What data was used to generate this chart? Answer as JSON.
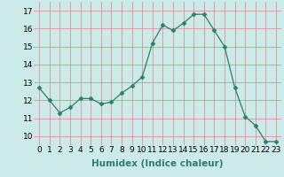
{
  "x": [
    0,
    1,
    2,
    3,
    4,
    5,
    6,
    7,
    8,
    9,
    10,
    11,
    12,
    13,
    14,
    15,
    16,
    17,
    18,
    19,
    20,
    21,
    22,
    23
  ],
  "y": [
    12.7,
    12.0,
    11.3,
    11.6,
    12.1,
    12.1,
    11.8,
    11.9,
    12.4,
    12.8,
    13.3,
    15.2,
    16.2,
    15.9,
    16.3,
    16.8,
    16.8,
    15.9,
    15.0,
    12.7,
    11.1,
    10.6,
    9.7,
    9.7
  ],
  "line_color": "#2e7d6e",
  "marker": "D",
  "marker_size": 2.5,
  "bg_color": "#cceae7",
  "grid_color": "#e08080",
  "xlabel": "Humidex (Indice chaleur)",
  "ylim": [
    9.5,
    17.5
  ],
  "xlim": [
    -0.5,
    23.5
  ],
  "yticks": [
    10,
    11,
    12,
    13,
    14,
    15,
    16,
    17
  ],
  "xtick_labels": [
    "0",
    "1",
    "2",
    "3",
    "4",
    "5",
    "6",
    "7",
    "8",
    "9",
    "10",
    "11",
    "12",
    "13",
    "14",
    "15",
    "16",
    "17",
    "18",
    "19",
    "20",
    "21",
    "22",
    "23"
  ],
  "xlabel_fontsize": 7.5,
  "tick_fontsize": 6.5
}
